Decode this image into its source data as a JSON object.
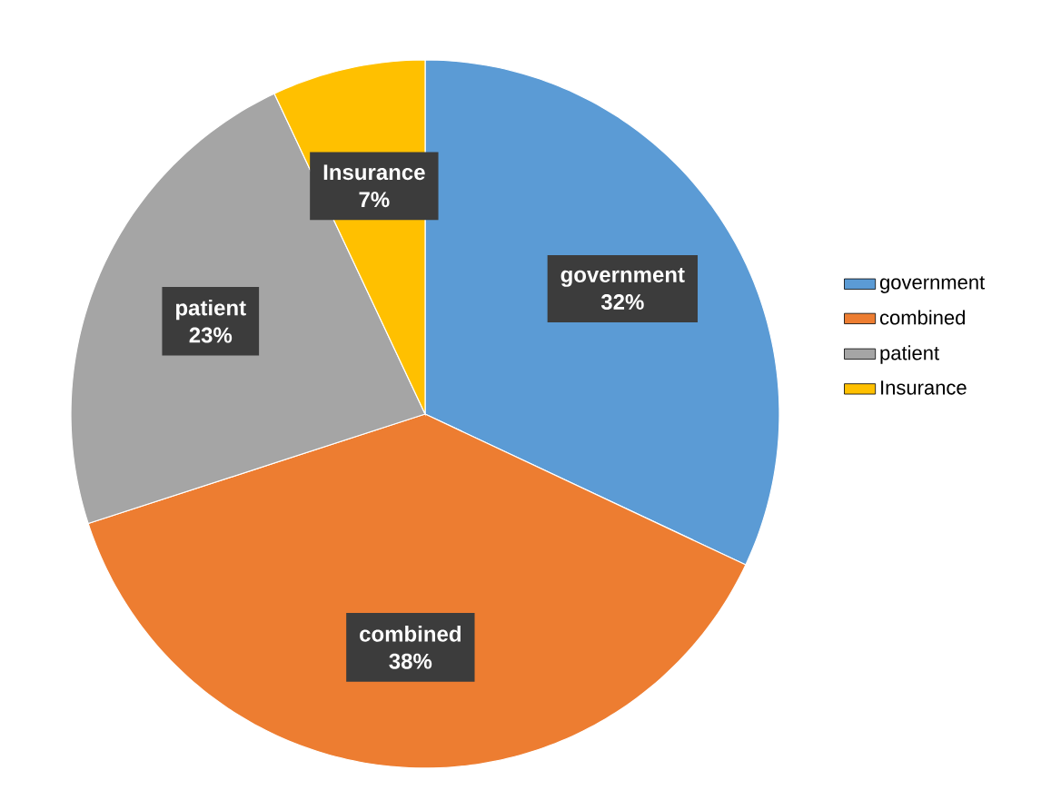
{
  "chart_data": {
    "type": "pie",
    "categories": [
      "government",
      "combined",
      "patient",
      "Insurance"
    ],
    "values": [
      32,
      38,
      23,
      7
    ],
    "value_labels": [
      "32%",
      "38%",
      "23%",
      "7%"
    ],
    "colors": [
      "#5b9bd5",
      "#ed7d31",
      "#a5a5a5",
      "#ffc000"
    ],
    "legend": "right"
  }
}
